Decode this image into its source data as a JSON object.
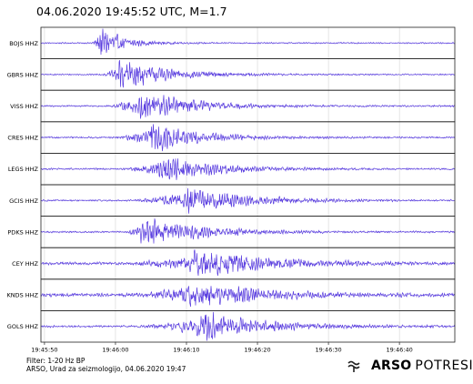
{
  "header": {
    "title": "04.06.2020  19:45:52 UTC, M=1.7"
  },
  "chart_data": {
    "type": "line",
    "title": "04.06.2020  19:45:52 UTC, M=1.7",
    "xlabel": "",
    "ylabel": "",
    "grid": true,
    "x_ticks": [
      "19:45:50",
      "19:46:00",
      "19:46:10",
      "19:46:20",
      "19:46:30",
      "19:46:40"
    ],
    "x_tick_seconds": [
      50,
      60,
      70,
      80,
      90,
      100
    ],
    "xlim_seconds": [
      49.5,
      107.8
    ],
    "line_color": "#5b3fe0",
    "series": [
      {
        "name": "BOJS HHZ",
        "onset": 56.5,
        "peak": 57.8,
        "amp": 0.95,
        "decay": 3.0,
        "noise": 0.04
      },
      {
        "name": "GBRS HHZ",
        "onset": 58.0,
        "peak": 60.5,
        "amp": 0.9,
        "decay": 6.5,
        "noise": 0.04
      },
      {
        "name": "VISS HHZ",
        "onset": 58.5,
        "peak": 63.5,
        "amp": 0.95,
        "decay": 6.5,
        "noise": 0.05
      },
      {
        "name": "CRES HHZ",
        "onset": 59.8,
        "peak": 65.0,
        "amp": 0.9,
        "decay": 6.0,
        "noise": 0.05
      },
      {
        "name": "LEGS HHZ",
        "onset": 60.5,
        "peak": 66.5,
        "amp": 0.8,
        "decay": 7.0,
        "noise": 0.05
      },
      {
        "name": "GCIS HHZ",
        "onset": 62.0,
        "peak": 70.0,
        "amp": 0.85,
        "decay": 7.5,
        "noise": 0.05
      },
      {
        "name": "PDKS HHZ",
        "onset": 61.5,
        "peak": 63.5,
        "amp": 0.9,
        "decay": 7.5,
        "noise": 0.05
      },
      {
        "name": "CEY HHZ",
        "onset": 61.0,
        "peak": 71.0,
        "amp": 0.95,
        "decay": 9.0,
        "noise": 0.08
      },
      {
        "name": "KNDS HHZ",
        "onset": 62.0,
        "peak": 70.5,
        "amp": 0.9,
        "decay": 8.0,
        "noise": 0.1
      },
      {
        "name": "GOLS HHZ",
        "onset": 63.0,
        "peak": 72.0,
        "amp": 0.9,
        "decay": 8.0,
        "noise": 0.06
      }
    ]
  },
  "footer": {
    "filter": "Filter: 1-20 Hz BP",
    "credit": "ARSO, Urad za seizmologijo, 04.06.2020  19:47"
  },
  "logo": {
    "bold": "ARSO",
    "light": "POTRESI",
    "icon": "arso-wave-icon"
  }
}
